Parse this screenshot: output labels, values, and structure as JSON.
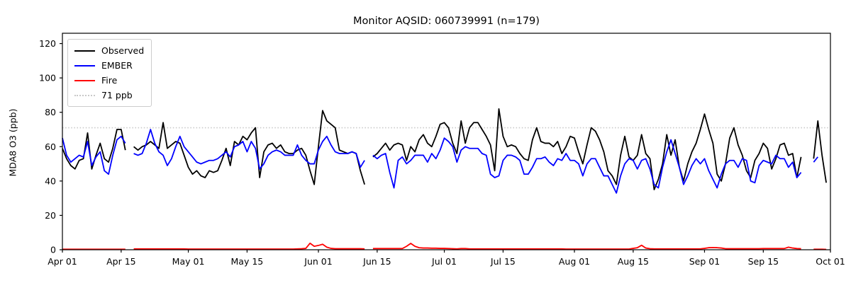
{
  "title": "Monitor AQSID: 060739991 (n=179)",
  "chart_data": {
    "type": "line",
    "title": "Monitor AQSID: 060739991 (n=179)",
    "xlabel": "",
    "ylabel": "MDA8 O3 (ppb)",
    "xlim": [
      0,
      183
    ],
    "ylim": [
      0,
      126
    ],
    "grid": false,
    "legend_position": "upper left",
    "x_unit": "day index from Apr 01",
    "x_ticks": {
      "positions": [
        0,
        14,
        30,
        44,
        61,
        75,
        91,
        105,
        122,
        136,
        153,
        167,
        183
      ],
      "labels": [
        "Apr 01",
        "Apr 15",
        "May 01",
        "May 15",
        "Jun 01",
        "Jun 15",
        "Jul 01",
        "Jul 15",
        "Aug 01",
        "Aug 15",
        "Sep 01",
        "Sep 15",
        "Oct 01"
      ]
    },
    "y_ticks": {
      "positions": [
        0,
        20,
        40,
        60,
        80,
        100,
        120
      ],
      "labels": [
        "0",
        "20",
        "40",
        "60",
        "80",
        "100",
        "120"
      ]
    },
    "threshold": {
      "label": "71 ppb",
      "value": 71,
      "color": "#c9c9c9",
      "style": "dotted"
    },
    "missing_days": [
      "Apr 17",
      "Jun 13",
      "Sep 25",
      "Sep 26"
    ],
    "series": [
      {
        "name": "Observed",
        "color": "#000000",
        "values": [
          59,
          53,
          49,
          47,
          52,
          53,
          68,
          47,
          55,
          62,
          53,
          51,
          59,
          70,
          70,
          58,
          null,
          60,
          58,
          60,
          61,
          63,
          61,
          59,
          74,
          59,
          61,
          63,
          62,
          55,
          48,
          44,
          46,
          43,
          42,
          46,
          45,
          46,
          52,
          59,
          49,
          63,
          61,
          66,
          64,
          68,
          71,
          42,
          57,
          61,
          62,
          59,
          61,
          57,
          56,
          56,
          58,
          59,
          55,
          46,
          38,
          60,
          81,
          75,
          73,
          71,
          58,
          57,
          56,
          57,
          56,
          46,
          38,
          null,
          54,
          56,
          59,
          62,
          58,
          61,
          62,
          61,
          52,
          60,
          57,
          64,
          67,
          62,
          60,
          66,
          73,
          74,
          71,
          62,
          56,
          75,
          62,
          71,
          74,
          74,
          70,
          66,
          61,
          46,
          82,
          66,
          60,
          61,
          60,
          56,
          53,
          52,
          64,
          71,
          63,
          62,
          62,
          60,
          63,
          56,
          60,
          66,
          65,
          57,
          50,
          61,
          71,
          69,
          64,
          57,
          46,
          43,
          38,
          55,
          66,
          54,
          52,
          55,
          67,
          56,
          53,
          35,
          41,
          50,
          67,
          55,
          64,
          48,
          40,
          50,
          57,
          62,
          70,
          79,
          70,
          62,
          44,
          40,
          50,
          65,
          71,
          61,
          55,
          46,
          42,
          52,
          56,
          62,
          59,
          47,
          53,
          61,
          62,
          55,
          56,
          42,
          54,
          null,
          null,
          53,
          75,
          55,
          39
        ]
      },
      {
        "name": "EMBER",
        "color": "#0000ff",
        "values": [
          65,
          55,
          51,
          53,
          55,
          54,
          63,
          49,
          54,
          57,
          46,
          44,
          55,
          64,
          66,
          62,
          null,
          56,
          55,
          56,
          62,
          70,
          62,
          57,
          55,
          49,
          53,
          60,
          66,
          60,
          57,
          54,
          51,
          50,
          51,
          52,
          52,
          53,
          55,
          57,
          54,
          60,
          61,
          63,
          57,
          63,
          59,
          47,
          50,
          55,
          57,
          58,
          57,
          55,
          55,
          55,
          61,
          55,
          52,
          50,
          50,
          58,
          63,
          66,
          61,
          57,
          56,
          56,
          56,
          57,
          56,
          48,
          52,
          null,
          55,
          53,
          55,
          56,
          45,
          36,
          52,
          54,
          50,
          52,
          55,
          55,
          55,
          51,
          56,
          53,
          58,
          65,
          63,
          60,
          51,
          58,
          60,
          59,
          59,
          59,
          56,
          55,
          44,
          42,
          43,
          52,
          55,
          55,
          54,
          52,
          44,
          44,
          48,
          53,
          53,
          54,
          51,
          49,
          53,
          52,
          56,
          52,
          52,
          50,
          43,
          50,
          53,
          53,
          48,
          43,
          43,
          38,
          33,
          43,
          50,
          53,
          52,
          47,
          52,
          53,
          47,
          38,
          36,
          48,
          57,
          64,
          56,
          48,
          38,
          43,
          49,
          53,
          50,
          53,
          46,
          41,
          36,
          44,
          50,
          52,
          52,
          48,
          53,
          52,
          40,
          39,
          49,
          52,
          51,
          50,
          55,
          53,
          53,
          48,
          51,
          42,
          45,
          null,
          null,
          51,
          54,
          null,
          null
        ]
      },
      {
        "name": "Fire",
        "color": "#ff0000",
        "values": [
          0.3,
          0.3,
          0.3,
          0.3,
          0.3,
          0.3,
          0.3,
          0.3,
          0.3,
          0.3,
          0.3,
          0.3,
          0.3,
          0.3,
          0.3,
          0.3,
          null,
          0.5,
          0.5,
          0.5,
          0.5,
          0.5,
          0.5,
          0.5,
          0.5,
          0.5,
          0.5,
          0.5,
          0.5,
          0.5,
          0.4,
          0.4,
          0.4,
          0.4,
          0.4,
          0.4,
          0.4,
          0.4,
          0.4,
          0.4,
          0.4,
          0.4,
          0.4,
          0.4,
          0.4,
          0.4,
          0.4,
          0.4,
          0.4,
          0.4,
          0.4,
          0.4,
          0.4,
          0.4,
          0.4,
          0.4,
          0.5,
          0.6,
          0.8,
          3.8,
          2.0,
          2.5,
          3.2,
          1.5,
          0.8,
          0.6,
          0.6,
          0.6,
          0.6,
          0.6,
          0.6,
          0.6,
          0.5,
          null,
          0.7,
          0.7,
          0.7,
          0.7,
          0.7,
          0.7,
          0.7,
          0.7,
          2.0,
          3.7,
          2.0,
          1.2,
          1.0,
          1.0,
          0.9,
          0.9,
          0.8,
          0.8,
          0.7,
          0.6,
          0.5,
          0.7,
          0.7,
          0.5,
          0.5,
          0.5,
          0.5,
          0.5,
          0.5,
          0.5,
          0.5,
          0.5,
          0.5,
          0.5,
          0.5,
          0.5,
          0.5,
          0.5,
          0.5,
          0.5,
          0.5,
          0.5,
          0.5,
          0.5,
          0.5,
          0.5,
          0.4,
          0.4,
          0.4,
          0.4,
          0.4,
          0.4,
          0.4,
          0.4,
          0.4,
          0.4,
          0.4,
          0.4,
          0.4,
          0.4,
          0.4,
          0.4,
          0.8,
          1.2,
          2.6,
          1.0,
          0.6,
          0.5,
          0.5,
          0.5,
          0.5,
          0.5,
          0.5,
          0.5,
          0.5,
          0.5,
          0.5,
          0.5,
          0.5,
          0.8,
          1.2,
          1.3,
          1.2,
          1.0,
          0.6,
          0.6,
          0.6,
          0.6,
          0.6,
          0.6,
          0.6,
          0.6,
          0.6,
          0.7,
          0.7,
          0.7,
          0.7,
          0.7,
          0.7,
          1.5,
          1.0,
          0.7,
          0.6,
          null,
          null,
          0.3,
          0.3,
          0.3,
          0.2
        ]
      }
    ],
    "legend": [
      {
        "label": "Observed",
        "color": "#000000",
        "style": "solid"
      },
      {
        "label": "EMBER",
        "color": "#0000ff",
        "style": "solid"
      },
      {
        "label": "Fire",
        "color": "#ff0000",
        "style": "solid"
      },
      {
        "label": "71 ppb",
        "color": "#c9c9c9",
        "style": "dotted"
      }
    ]
  }
}
